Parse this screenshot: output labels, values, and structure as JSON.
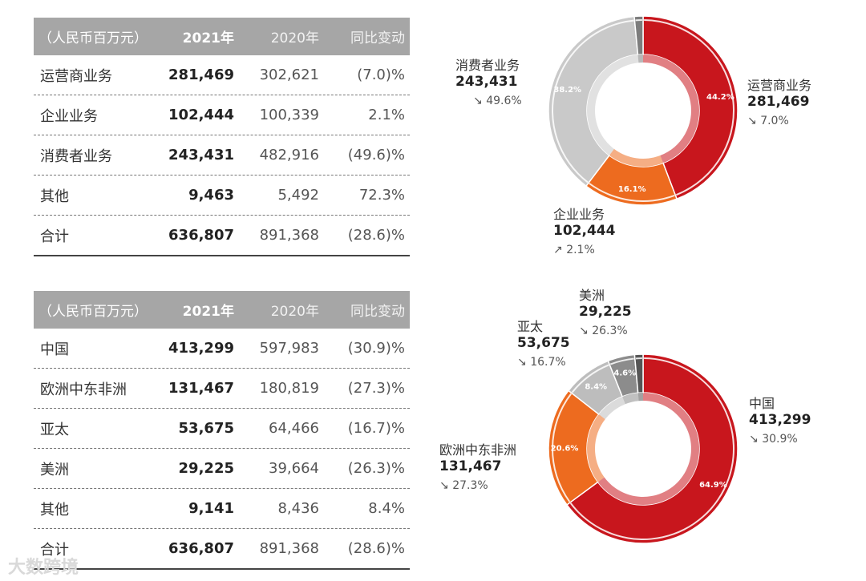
{
  "table1": {
    "header": [
      "（人民币百万元）",
      "2021年",
      "2020年",
      "同比变动"
    ],
    "rows": [
      [
        "运营商业务",
        "281,469",
        "302,621",
        "(7.0)%"
      ],
      [
        "企业业务",
        "102,444",
        "100,339",
        "2.1%"
      ],
      [
        "消费者业务",
        "243,431",
        "482,916",
        "(49.6)%"
      ],
      [
        "其他",
        "9,463",
        "5,492",
        "72.3%"
      ],
      [
        "合计",
        "636,807",
        "891,368",
        "(28.6)%"
      ]
    ]
  },
  "table2": {
    "header": [
      "（人民币百万元）",
      "2021年",
      "2020年",
      "同比变动"
    ],
    "rows": [
      [
        "中国",
        "413,299",
        "597,983",
        "(30.9)%"
      ],
      [
        "欧洲中东非洲",
        "131,467",
        "180,819",
        "(27.3)%"
      ],
      [
        "亚太",
        "53,675",
        "64,466",
        "(16.7)%"
      ],
      [
        "美洲",
        "29,225",
        "39,664",
        "(26.3)%"
      ],
      [
        "其他",
        "9,141",
        "8,436",
        "8.4%"
      ],
      [
        "合计",
        "636,807",
        "891,368",
        "(28.6)%"
      ]
    ]
  },
  "chart_data": [
    {
      "type": "pie",
      "categories": [
        "运营商业务",
        "企业业务",
        "消费者业务",
        "其他"
      ],
      "values": [
        281469,
        102444,
        243431,
        9463
      ],
      "slice_labels": [
        "44.2%",
        "16.1%",
        "38.2%",
        ""
      ],
      "callouts": [
        {
          "name": "运营商业务",
          "value": "281,469",
          "change": "7.0%",
          "dir": "↘"
        },
        {
          "name": "企业业务",
          "value": "102,444",
          "change": "2.1%",
          "dir": "↗"
        },
        {
          "name": "消费者业务",
          "value": "243,431",
          "change": "49.6%",
          "dir": "↘"
        }
      ],
      "colors": [
        "#c8161d",
        "#ed6b1f",
        "#c9c9c9",
        "#7d7d7d"
      ]
    },
    {
      "type": "pie",
      "categories": [
        "中国",
        "欧洲中东非洲",
        "亚太",
        "美洲",
        "其他"
      ],
      "values": [
        413299,
        131467,
        53675,
        29225,
        9141
      ],
      "slice_labels": [
        "64.9%",
        "20.6%",
        "8.4%",
        "4.6%",
        ""
      ],
      "callouts": [
        {
          "name": "中国",
          "value": "413,299",
          "change": "30.9%",
          "dir": "↘"
        },
        {
          "name": "欧洲中东非洲",
          "value": "131,467",
          "change": "27.3%",
          "dir": "↘"
        },
        {
          "name": "亚太",
          "value": "53,675",
          "change": "16.7%",
          "dir": "↘"
        },
        {
          "name": "美洲",
          "value": "29,225",
          "change": "26.3%",
          "dir": "↘"
        }
      ],
      "colors": [
        "#c8161d",
        "#ed6b1f",
        "#bdbdbd",
        "#8c8c8c",
        "#555555"
      ]
    }
  ],
  "watermark": "大数跨境"
}
